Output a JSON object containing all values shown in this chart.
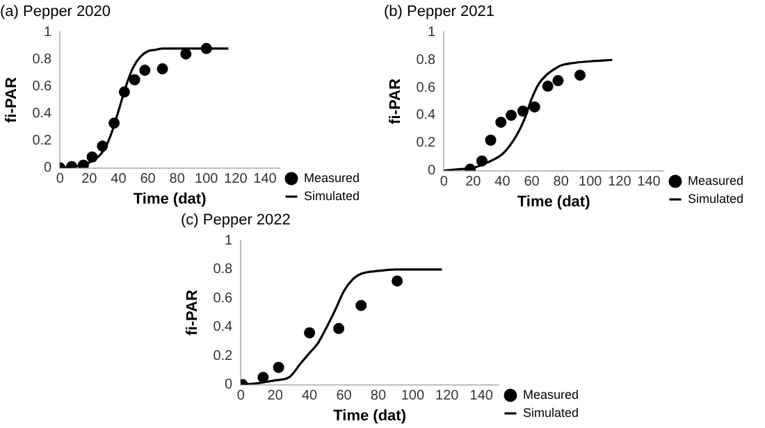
{
  "chart_data": [
    {
      "type": "scatter",
      "title": "(a) Pepper 2020",
      "xlabel": "Time (dat)",
      "ylabel": "fi-PAR",
      "xlim": [
        0,
        150
      ],
      "xticks": [
        0,
        20,
        40,
        60,
        80,
        100,
        120,
        140
      ],
      "ylim": [
        0,
        1
      ],
      "yticks": [
        0,
        0.2,
        0.4,
        0.6,
        0.8,
        1
      ],
      "grid": false,
      "legend": "bottom right",
      "series": [
        {
          "name": "Measured",
          "type": "scatter",
          "marker": "circle",
          "color": "#000000",
          "x": [
            0,
            8,
            16,
            22,
            29,
            37,
            44,
            51,
            58,
            70,
            86,
            100
          ],
          "values": [
            0,
            0.01,
            0.02,
            0.08,
            0.16,
            0.33,
            0.56,
            0.65,
            0.72,
            0.73,
            0.84,
            0.88
          ]
        },
        {
          "name": "Simulated",
          "type": "line",
          "marker": "none",
          "color": "#000000",
          "x": [
            0,
            10,
            20,
            30,
            35,
            40,
            45,
            50,
            55,
            60,
            65,
            70,
            115
          ],
          "values": [
            0,
            0.01,
            0.04,
            0.13,
            0.25,
            0.42,
            0.6,
            0.74,
            0.82,
            0.86,
            0.87,
            0.88,
            0.88
          ]
        }
      ]
    },
    {
      "type": "scatter",
      "title": "(b) Pepper 2021",
      "xlabel": "Time (dat)",
      "ylabel": "fi-PAR",
      "xlim": [
        0,
        150
      ],
      "xticks": [
        0,
        20,
        40,
        60,
        80,
        100,
        120,
        140
      ],
      "ylim": [
        0,
        1
      ],
      "yticks": [
        0,
        0.2,
        0.4,
        0.6,
        0.8,
        1
      ],
      "grid": false,
      "legend": "bottom right",
      "series": [
        {
          "name": "Measured",
          "type": "scatter",
          "marker": "circle",
          "color": "#000000",
          "x": [
            18,
            26,
            32,
            39,
            46,
            54,
            62,
            71,
            78,
            93
          ],
          "values": [
            0.01,
            0.07,
            0.22,
            0.35,
            0.4,
            0.43,
            0.46,
            0.61,
            0.65,
            0.69
          ]
        },
        {
          "name": "Simulated",
          "type": "line",
          "marker": "none",
          "color": "#000000",
          "x": [
            0,
            10,
            20,
            30,
            40,
            45,
            50,
            55,
            60,
            65,
            70,
            75,
            80,
            90,
            100,
            115
          ],
          "values": [
            0,
            0.01,
            0.02,
            0.06,
            0.12,
            0.18,
            0.26,
            0.37,
            0.52,
            0.63,
            0.69,
            0.73,
            0.76,
            0.78,
            0.79,
            0.8
          ]
        }
      ]
    },
    {
      "type": "scatter",
      "title": "(c) Pepper 2022",
      "xlabel": "Time (dat)",
      "ylabel": "fi-PAR",
      "xlim": [
        0,
        150
      ],
      "xticks": [
        0,
        20,
        40,
        60,
        80,
        100,
        120,
        140
      ],
      "ylim": [
        0,
        1
      ],
      "yticks": [
        0,
        0.2,
        0.4,
        0.6,
        0.8,
        1
      ],
      "grid": false,
      "legend": "bottom right",
      "series": [
        {
          "name": "Measured",
          "type": "scatter",
          "marker": "circle",
          "color": "#000000",
          "x": [
            1,
            13,
            22,
            40,
            57,
            70,
            91
          ],
          "values": [
            0,
            0.05,
            0.12,
            0.36,
            0.39,
            0.55,
            0.72
          ]
        },
        {
          "name": "Simulated",
          "type": "line",
          "marker": "none",
          "color": "#000000",
          "x": [
            0,
            10,
            20,
            28,
            35,
            40,
            45,
            50,
            55,
            60,
            65,
            70,
            80,
            90,
            117
          ],
          "values": [
            0,
            0.01,
            0.03,
            0.05,
            0.15,
            0.22,
            0.29,
            0.4,
            0.52,
            0.65,
            0.73,
            0.77,
            0.79,
            0.8,
            0.8
          ]
        }
      ]
    }
  ]
}
